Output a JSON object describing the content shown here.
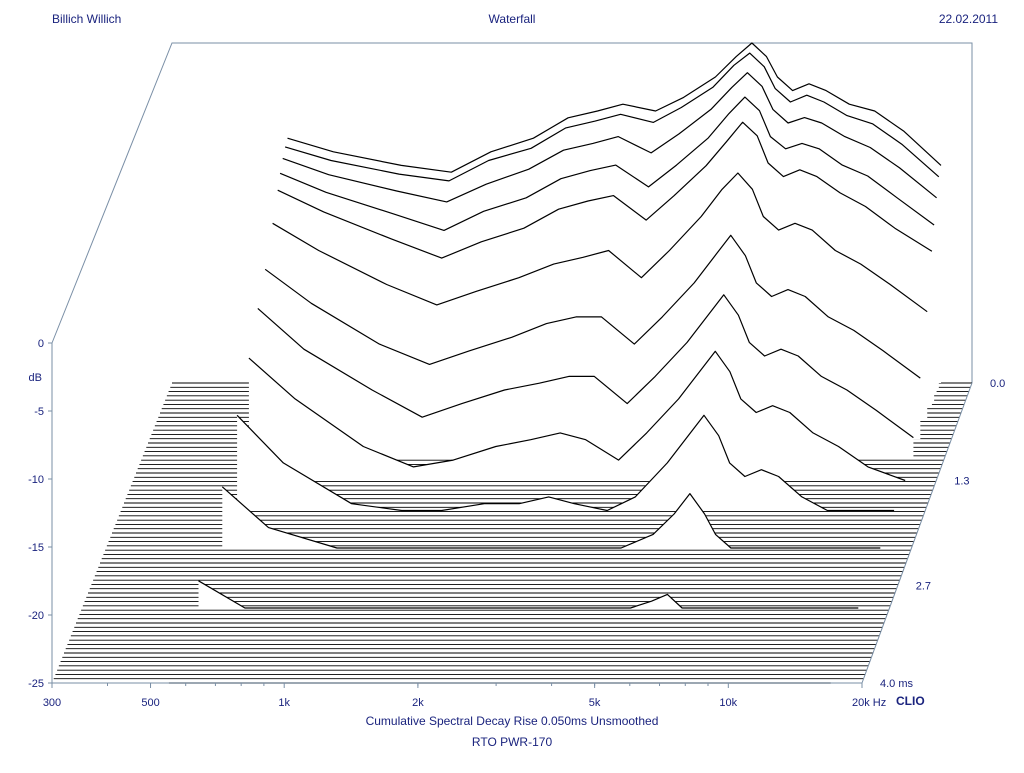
{
  "header": {
    "left": "Billich Willich",
    "center": "Waterfall",
    "right": "22.02.2011"
  },
  "footer": {
    "line1": "Cumulative Spectral Decay   Rise 0.050ms   Unsmoothed",
    "line2": "RTO PWR-170"
  },
  "brand": "CLIO",
  "colors": {
    "text": "#1a237e",
    "axis": "#7a8fa6",
    "curve": "#000000",
    "background": "#ffffff"
  },
  "chart_data": {
    "type": "area",
    "ylabel": "dB",
    "y_ticks": [
      0,
      -5,
      -10,
      -15,
      -20,
      -25
    ],
    "y_tick_labels": [
      "0",
      "-5",
      "-10",
      "-15",
      "-20",
      "-25"
    ],
    "ylim": [
      -25,
      0
    ],
    "x_scale": "log",
    "xlim": [
      300,
      20000
    ],
    "x_ticks": [
      300,
      500,
      1000,
      2000,
      5000,
      10000,
      20000
    ],
    "x_tick_labels": [
      "300",
      "500",
      "1k",
      "2k",
      "5k",
      "10k",
      "20k Hz"
    ],
    "z_ticks": [
      0.0,
      1.3,
      2.7,
      4.0
    ],
    "z_tick_labels": [
      "0.0",
      "1.3",
      "2.7",
      "4.0  ms"
    ],
    "zlim": [
      0,
      4.0
    ],
    "slices": [
      {
        "time_ms": 0.0,
        "points": [
          [
            550,
            -7
          ],
          [
            700,
            -8
          ],
          [
            1000,
            -9
          ],
          [
            1300,
            -9.5
          ],
          [
            1600,
            -8
          ],
          [
            2000,
            -7
          ],
          [
            2400,
            -5.5
          ],
          [
            2800,
            -5
          ],
          [
            3200,
            -4.5
          ],
          [
            3800,
            -5
          ],
          [
            4400,
            -4
          ],
          [
            5200,
            -2.5
          ],
          [
            5800,
            -1
          ],
          [
            6300,
            0
          ],
          [
            6800,
            -1
          ],
          [
            7200,
            -2.5
          ],
          [
            7800,
            -3.5
          ],
          [
            8500,
            -3
          ],
          [
            9300,
            -3.5
          ],
          [
            10500,
            -4.5
          ],
          [
            12000,
            -5
          ],
          [
            14000,
            -6.5
          ],
          [
            17000,
            -9
          ]
        ]
      },
      {
        "time_ms": 0.08,
        "points": [
          [
            550,
            -7.2
          ],
          [
            700,
            -8.2
          ],
          [
            1000,
            -9.2
          ],
          [
            1300,
            -9.7
          ],
          [
            1600,
            -8.2
          ],
          [
            2000,
            -7.3
          ],
          [
            2400,
            -5.8
          ],
          [
            2800,
            -5.3
          ],
          [
            3200,
            -4.8
          ],
          [
            3800,
            -5.4
          ],
          [
            4400,
            -4.3
          ],
          [
            5200,
            -2.8
          ],
          [
            5800,
            -1.2
          ],
          [
            6300,
            -0.3
          ],
          [
            6800,
            -1.3
          ],
          [
            7200,
            -2.9
          ],
          [
            7800,
            -3.9
          ],
          [
            8500,
            -3.4
          ],
          [
            9300,
            -3.9
          ],
          [
            10500,
            -4.9
          ],
          [
            12000,
            -5.5
          ],
          [
            14000,
            -7
          ],
          [
            17000,
            -9.4
          ]
        ]
      },
      {
        "time_ms": 0.16,
        "points": [
          [
            550,
            -7.6
          ],
          [
            700,
            -8.8
          ],
          [
            1000,
            -10
          ],
          [
            1300,
            -10.8
          ],
          [
            1600,
            -9.5
          ],
          [
            2000,
            -8.4
          ],
          [
            2400,
            -7
          ],
          [
            2800,
            -6.5
          ],
          [
            3200,
            -6
          ],
          [
            3800,
            -7.2
          ],
          [
            4400,
            -5.8
          ],
          [
            5200,
            -4
          ],
          [
            5800,
            -2.4
          ],
          [
            6300,
            -1.3
          ],
          [
            6800,
            -2.3
          ],
          [
            7200,
            -4
          ],
          [
            7800,
            -5
          ],
          [
            8500,
            -4.6
          ],
          [
            9300,
            -5
          ],
          [
            10500,
            -6
          ],
          [
            12000,
            -6.8
          ],
          [
            14000,
            -8.3
          ],
          [
            17000,
            -10.5
          ]
        ]
      },
      {
        "time_ms": 0.25,
        "points": [
          [
            550,
            -8.2
          ],
          [
            700,
            -9.6
          ],
          [
            1000,
            -11.2
          ],
          [
            1300,
            -12.4
          ],
          [
            1600,
            -11
          ],
          [
            2000,
            -10
          ],
          [
            2400,
            -8.6
          ],
          [
            2800,
            -8
          ],
          [
            3200,
            -7.6
          ],
          [
            3800,
            -9.2
          ],
          [
            4400,
            -7.6
          ],
          [
            5200,
            -5.6
          ],
          [
            5800,
            -3.8
          ],
          [
            6300,
            -2.6
          ],
          [
            6800,
            -3.6
          ],
          [
            7200,
            -5.5
          ],
          [
            7800,
            -6.4
          ],
          [
            8500,
            -6
          ],
          [
            9300,
            -6.4
          ],
          [
            10500,
            -7.6
          ],
          [
            12000,
            -8.4
          ],
          [
            14000,
            -10
          ],
          [
            17000,
            -12
          ]
        ]
      },
      {
        "time_ms": 0.33,
        "points": [
          [
            550,
            -9
          ],
          [
            700,
            -10.6
          ],
          [
            1000,
            -12.6
          ],
          [
            1300,
            -14
          ],
          [
            1600,
            -12.8
          ],
          [
            2000,
            -11.8
          ],
          [
            2400,
            -10.4
          ],
          [
            2800,
            -9.8
          ],
          [
            3200,
            -9.4
          ],
          [
            3800,
            -11.2
          ],
          [
            4400,
            -9.4
          ],
          [
            5200,
            -7.2
          ],
          [
            5800,
            -5.4
          ],
          [
            6300,
            -4
          ],
          [
            6800,
            -5
          ],
          [
            7200,
            -7
          ],
          [
            7800,
            -8
          ],
          [
            8500,
            -7.5
          ],
          [
            9300,
            -8
          ],
          [
            10500,
            -9.2
          ],
          [
            12000,
            -10.2
          ],
          [
            14000,
            -11.8
          ],
          [
            17000,
            -13.5
          ]
        ]
      },
      {
        "time_ms": 0.5,
        "points": [
          [
            550,
            -10.5
          ],
          [
            700,
            -12.5
          ],
          [
            1000,
            -15
          ],
          [
            1300,
            -16.5
          ],
          [
            1600,
            -15.5
          ],
          [
            2000,
            -14.5
          ],
          [
            2400,
            -13.5
          ],
          [
            2800,
            -13
          ],
          [
            3200,
            -12.5
          ],
          [
            3800,
            -14.5
          ],
          [
            4400,
            -12.5
          ],
          [
            5200,
            -10
          ],
          [
            5800,
            -8
          ],
          [
            6300,
            -6.8
          ],
          [
            6800,
            -8
          ],
          [
            7200,
            -10
          ],
          [
            7800,
            -11
          ],
          [
            8500,
            -10.5
          ],
          [
            9300,
            -11
          ],
          [
            10500,
            -12.5
          ],
          [
            12000,
            -13.5
          ],
          [
            14000,
            -15
          ],
          [
            17000,
            -17
          ]
        ]
      },
      {
        "time_ms": 0.75,
        "points": [
          [
            550,
            -12.5
          ],
          [
            700,
            -15
          ],
          [
            1000,
            -18
          ],
          [
            1300,
            -19.5
          ],
          [
            1600,
            -18.5
          ],
          [
            2000,
            -17.5
          ],
          [
            2400,
            -16.5
          ],
          [
            2800,
            -16
          ],
          [
            3200,
            -16
          ],
          [
            3800,
            -18
          ],
          [
            4400,
            -16
          ],
          [
            5200,
            -13.5
          ],
          [
            5800,
            -11.5
          ],
          [
            6300,
            -10
          ],
          [
            6800,
            -11.5
          ],
          [
            7200,
            -13.5
          ],
          [
            7800,
            -14.5
          ],
          [
            8500,
            -14
          ],
          [
            9300,
            -14.5
          ],
          [
            10500,
            -16
          ],
          [
            12000,
            -17
          ],
          [
            14000,
            -18.5
          ],
          [
            17000,
            -20.5
          ]
        ]
      },
      {
        "time_ms": 1.0,
        "points": [
          [
            550,
            -14
          ],
          [
            700,
            -17
          ],
          [
            1000,
            -20
          ],
          [
            1300,
            -22
          ],
          [
            1600,
            -21
          ],
          [
            2000,
            -20
          ],
          [
            2400,
            -19.5
          ],
          [
            2800,
            -19
          ],
          [
            3200,
            -19
          ],
          [
            3800,
            -21
          ],
          [
            4400,
            -19
          ],
          [
            5200,
            -16.5
          ],
          [
            5800,
            -14.5
          ],
          [
            6300,
            -13
          ],
          [
            6800,
            -14.5
          ],
          [
            7200,
            -16.5
          ],
          [
            7800,
            -17.5
          ],
          [
            8500,
            -17
          ],
          [
            9300,
            -17.5
          ],
          [
            10500,
            -19
          ],
          [
            12000,
            -20
          ],
          [
            14000,
            -21.5
          ],
          [
            17000,
            -23.5
          ]
        ]
      },
      {
        "time_ms": 1.3,
        "points": [
          [
            550,
            -16
          ],
          [
            700,
            -19
          ],
          [
            1000,
            -22.5
          ],
          [
            1300,
            -24
          ],
          [
            1600,
            -23.5
          ],
          [
            2000,
            -22.5
          ],
          [
            2400,
            -22
          ],
          [
            2800,
            -21.5
          ],
          [
            3200,
            -22
          ],
          [
            3800,
            -23.5
          ],
          [
            4400,
            -21.5
          ],
          [
            5200,
            -19
          ],
          [
            5800,
            -17
          ],
          [
            6300,
            -15.5
          ],
          [
            6800,
            -17
          ],
          [
            7200,
            -19
          ],
          [
            7800,
            -20
          ],
          [
            8500,
            -19.5
          ],
          [
            9300,
            -20
          ],
          [
            10500,
            -21.5
          ],
          [
            12000,
            -22.5
          ],
          [
            14000,
            -24
          ],
          [
            17000,
            -25
          ]
        ]
      },
      {
        "time_ms": 1.7,
        "points": [
          [
            550,
            -18
          ],
          [
            700,
            -21.5
          ],
          [
            1000,
            -24.5
          ],
          [
            1300,
            -25
          ],
          [
            1600,
            -25
          ],
          [
            2000,
            -24.5
          ],
          [
            2400,
            -24.5
          ],
          [
            2800,
            -24
          ],
          [
            3200,
            -24.5
          ],
          [
            3800,
            -25
          ],
          [
            4400,
            -24
          ],
          [
            5200,
            -21.5
          ],
          [
            5800,
            -19.5
          ],
          [
            6300,
            -18
          ],
          [
            6800,
            -19.5
          ],
          [
            7200,
            -21.5
          ],
          [
            7800,
            -22.5
          ],
          [
            8500,
            -22
          ],
          [
            9300,
            -22.5
          ],
          [
            10500,
            -24
          ],
          [
            12000,
            -25
          ],
          [
            14000,
            -25
          ],
          [
            17000,
            -25
          ]
        ]
      },
      {
        "time_ms": 2.2,
        "points": [
          [
            550,
            -20.5
          ],
          [
            700,
            -23.5
          ],
          [
            1000,
            -25
          ],
          [
            1300,
            -25
          ],
          [
            1600,
            -25
          ],
          [
            2000,
            -25
          ],
          [
            2400,
            -25
          ],
          [
            2800,
            -25
          ],
          [
            3200,
            -25
          ],
          [
            3800,
            -25
          ],
          [
            4400,
            -25
          ],
          [
            5200,
            -24
          ],
          [
            5800,
            -22.5
          ],
          [
            6300,
            -21
          ],
          [
            6800,
            -22.5
          ],
          [
            7200,
            -24
          ],
          [
            7800,
            -25
          ],
          [
            8500,
            -25
          ],
          [
            9300,
            -25
          ],
          [
            10500,
            -25
          ],
          [
            12000,
            -25
          ],
          [
            14000,
            -25
          ],
          [
            17000,
            -25
          ]
        ]
      },
      {
        "time_ms": 3.0,
        "points": [
          [
            550,
            -23
          ],
          [
            700,
            -25
          ],
          [
            1000,
            -25
          ],
          [
            1300,
            -25
          ],
          [
            1600,
            -25
          ],
          [
            2000,
            -25
          ],
          [
            2400,
            -25
          ],
          [
            2800,
            -25
          ],
          [
            3200,
            -25
          ],
          [
            3800,
            -25
          ],
          [
            4400,
            -25
          ],
          [
            5200,
            -25
          ],
          [
            5800,
            -24.5
          ],
          [
            6300,
            -24
          ],
          [
            6800,
            -25
          ],
          [
            7200,
            -25
          ],
          [
            7800,
            -25
          ],
          [
            8500,
            -25
          ],
          [
            9300,
            -25
          ],
          [
            10500,
            -25
          ],
          [
            12000,
            -25
          ],
          [
            14000,
            -25
          ],
          [
            17000,
            -25
          ]
        ]
      },
      {
        "time_ms": 4.0,
        "points": [
          [
            550,
            -25
          ],
          [
            700,
            -25
          ],
          [
            1000,
            -25
          ],
          [
            1300,
            -25
          ],
          [
            1600,
            -25
          ],
          [
            2000,
            -25
          ],
          [
            2400,
            -25
          ],
          [
            2800,
            -25
          ],
          [
            3200,
            -25
          ],
          [
            3800,
            -25
          ],
          [
            4400,
            -25
          ],
          [
            5200,
            -25
          ],
          [
            5800,
            -25
          ],
          [
            6300,
            -25
          ],
          [
            6800,
            -25
          ],
          [
            7200,
            -25
          ],
          [
            7800,
            -25
          ],
          [
            8500,
            -25
          ],
          [
            9300,
            -25
          ],
          [
            10500,
            -25
          ],
          [
            12000,
            -25
          ],
          [
            14000,
            -25
          ],
          [
            17000,
            -25
          ]
        ]
      }
    ]
  }
}
